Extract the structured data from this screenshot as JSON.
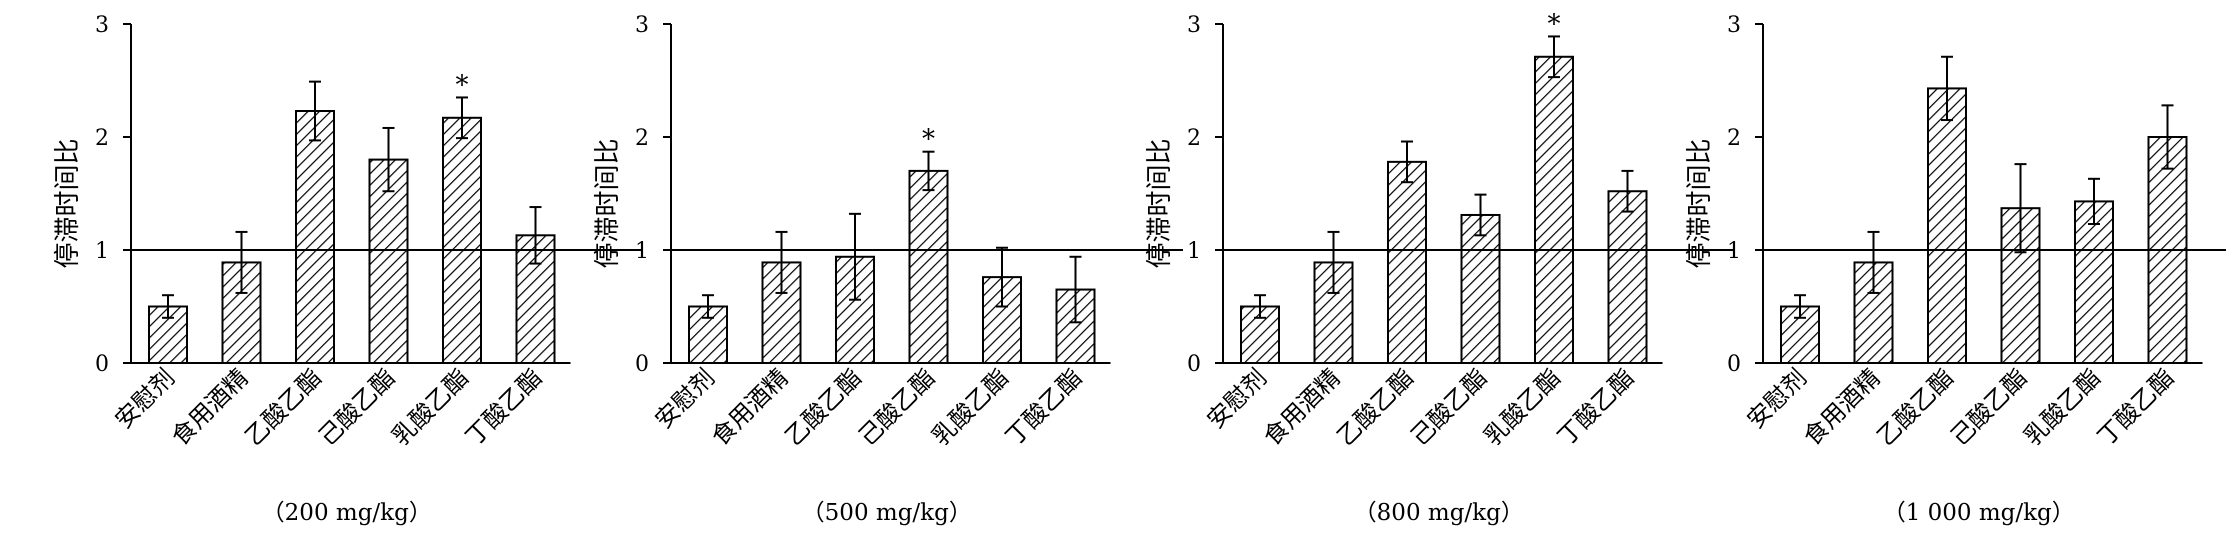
{
  "chart_data": [
    {
      "type": "bar",
      "title": "（200 mg/kg）",
      "ylabel": "停滞时间比",
      "ylim": [
        0,
        3
      ],
      "yticks": [
        "0",
        "1",
        "2",
        "3"
      ],
      "reference_line": 1,
      "categories": [
        "安慰剂",
        "食用酒精",
        "乙酸乙酯",
        "己酸乙酯",
        "乳酸乙酯",
        "丁酸乙酯"
      ],
      "values": [
        0.5,
        0.89,
        2.23,
        1.8,
        2.17,
        1.13
      ],
      "errors": [
        0.1,
        0.27,
        0.26,
        0.28,
        0.18,
        0.25
      ],
      "significance": [
        "",
        "",
        "",
        "",
        "*",
        ""
      ]
    },
    {
      "type": "bar",
      "title": "（500 mg/kg）",
      "ylabel": "停滞时间比",
      "ylim": [
        0,
        3
      ],
      "yticks": [
        "0",
        "1",
        "2",
        "3"
      ],
      "reference_line": 1,
      "categories": [
        "安慰剂",
        "食用酒精",
        "乙酸乙酯",
        "己酸乙酯",
        "乳酸乙酯",
        "丁酸乙酯"
      ],
      "values": [
        0.5,
        0.89,
        0.94,
        1.7,
        0.76,
        0.65
      ],
      "errors": [
        0.1,
        0.27,
        0.38,
        0.17,
        0.26,
        0.29
      ],
      "significance": [
        "",
        "",
        "",
        "*",
        "",
        ""
      ]
    },
    {
      "type": "bar",
      "title": "（800 mg/kg）",
      "ylabel": "停滞时间比",
      "ylim": [
        0,
        3
      ],
      "yticks": [
        "0",
        "1",
        "2",
        "3"
      ],
      "reference_line": 1,
      "categories": [
        "安慰剂",
        "食用酒精",
        "乙酸乙酯",
        "己酸乙酯",
        "乳酸乙酯",
        "丁酸乙酯"
      ],
      "values": [
        0.5,
        0.89,
        1.78,
        1.31,
        2.71,
        1.52
      ],
      "errors": [
        0.1,
        0.27,
        0.18,
        0.18,
        0.18,
        0.18
      ],
      "significance": [
        "",
        "",
        "",
        "",
        "*",
        ""
      ]
    },
    {
      "type": "bar",
      "title": "（1 000 mg/kg）",
      "ylabel": "停滞时间比",
      "ylim": [
        0,
        3
      ],
      "yticks": [
        "0",
        "1",
        "2",
        "3"
      ],
      "reference_line": 1,
      "categories": [
        "安慰剂",
        "食用酒精",
        "乙酸乙酯",
        "己酸乙酯",
        "乳酸乙酯",
        "丁酸乙酯"
      ],
      "values": [
        0.5,
        0.89,
        2.43,
        1.37,
        1.43,
        2.0
      ],
      "errors": [
        0.1,
        0.27,
        0.28,
        0.39,
        0.2,
        0.28
      ],
      "significance": [
        "",
        "",
        "",
        "",
        "",
        ""
      ]
    }
  ]
}
